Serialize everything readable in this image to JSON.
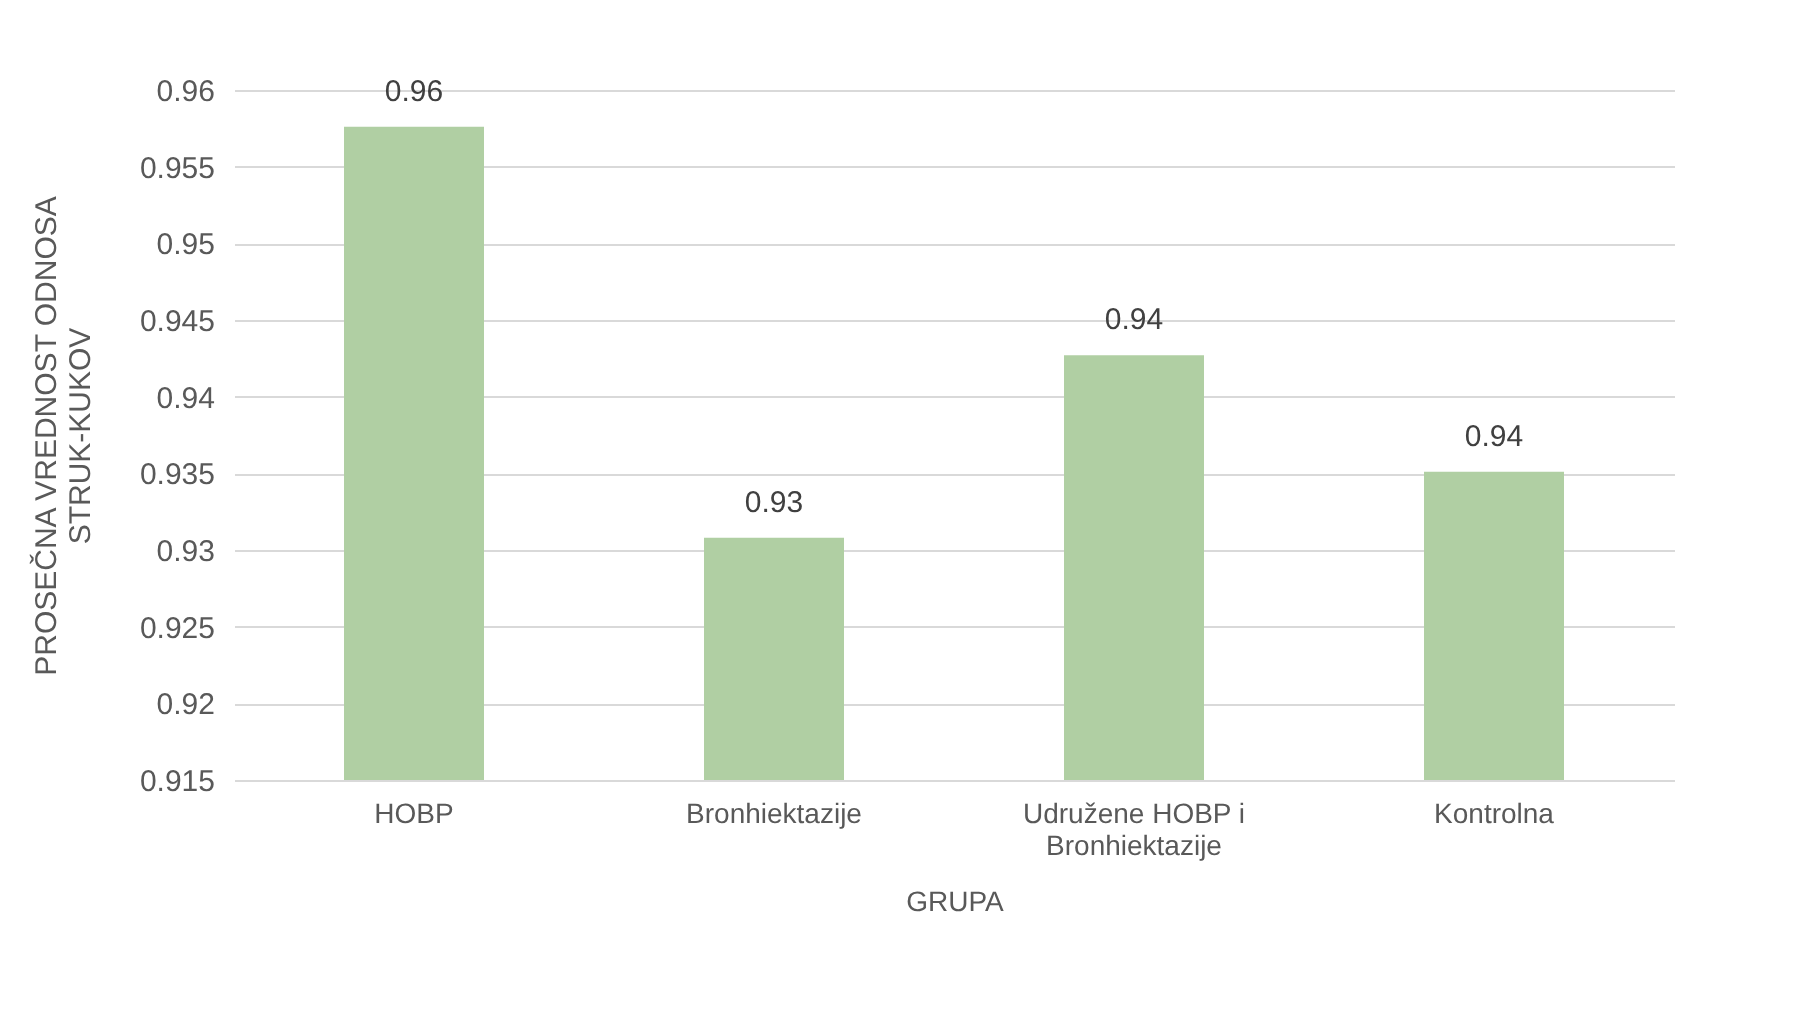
{
  "chart_data": {
    "type": "bar",
    "categories": [
      "HOBP",
      "Bronhiektazije",
      "Udružene HOBP i Bronhiektazije",
      "Kontrolna"
    ],
    "values": [
      0.9576,
      0.9308,
      0.9427,
      0.9351
    ],
    "value_labels": [
      "0.96",
      "0.93",
      "0.94",
      "0.94"
    ],
    "color": "#b0cfa3",
    "xlabel": "GRUPA",
    "ylabel": "PROSEČNA VREDNOST ODNOSA STRUK-KUKOV",
    "ylim": [
      0.915,
      0.96
    ],
    "yticks": [
      0.915,
      0.92,
      0.925,
      0.93,
      0.935,
      0.94,
      0.945,
      0.95,
      0.955,
      0.96
    ],
    "grid": "y"
  }
}
